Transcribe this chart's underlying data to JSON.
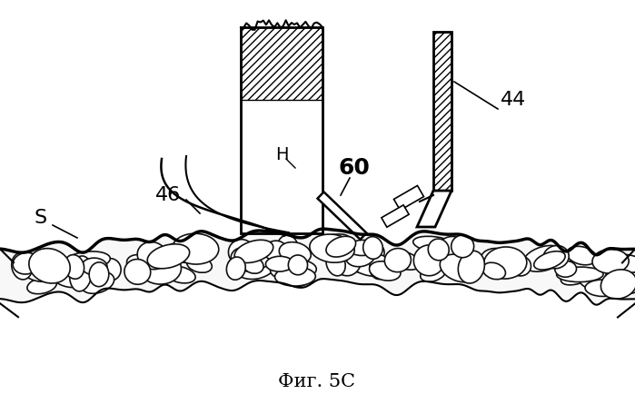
{
  "title": "Фиг. 5C",
  "bg_color": "#ffffff",
  "line_color": "#000000",
  "fig_width": 6.99,
  "fig_height": 4.45,
  "dpi": 100,
  "skin_fill": "#ffffff",
  "cell_fill": "#ffffff",
  "cell_edge": "#111111"
}
